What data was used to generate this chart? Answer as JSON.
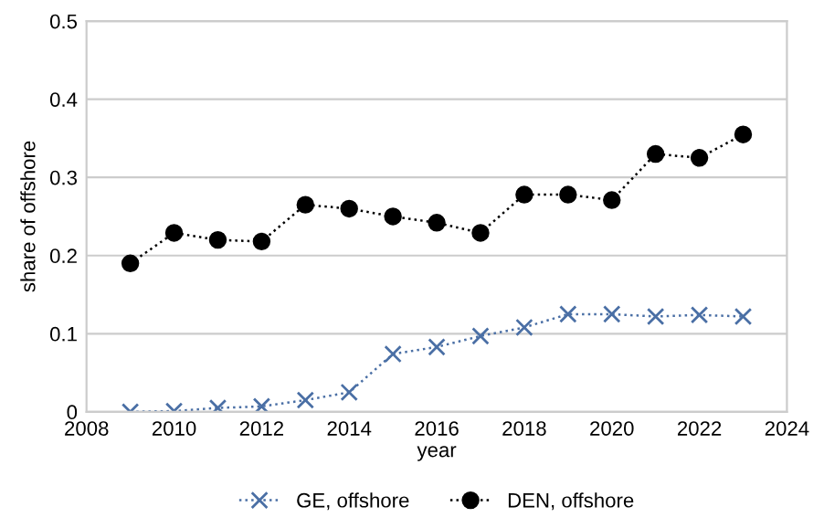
{
  "chart_data": {
    "type": "line",
    "xlabel": "year",
    "ylabel": "share of offshore",
    "x": [
      2009,
      2010,
      2011,
      2012,
      2013,
      2014,
      2015,
      2016,
      2017,
      2018,
      2019,
      2020,
      2021,
      2022,
      2023
    ],
    "series": [
      {
        "name": "GE, offshore",
        "color": "#4a6fa5",
        "marker": "cross",
        "values": [
          0.0,
          0.001,
          0.005,
          0.007,
          0.015,
          0.025,
          0.074,
          0.083,
          0.097,
          0.108,
          0.125,
          0.125,
          0.122,
          0.124,
          0.122
        ]
      },
      {
        "name": "DEN, offshore",
        "color": "#000000",
        "marker": "circle",
        "values": [
          0.19,
          0.229,
          0.22,
          0.218,
          0.265,
          0.26,
          0.25,
          0.242,
          0.229,
          0.278,
          0.278,
          0.271,
          0.33,
          0.325,
          0.355
        ]
      }
    ],
    "xlim": [
      2008,
      2024
    ],
    "xticks": [
      2008,
      2010,
      2012,
      2014,
      2016,
      2018,
      2020,
      2022,
      2024
    ],
    "ylim": [
      0,
      0.5
    ],
    "yticks": [
      0,
      0.1,
      0.2,
      0.3,
      0.4,
      0.5
    ],
    "grid": "y",
    "legend": "bottom",
    "line_style": "dotted"
  }
}
